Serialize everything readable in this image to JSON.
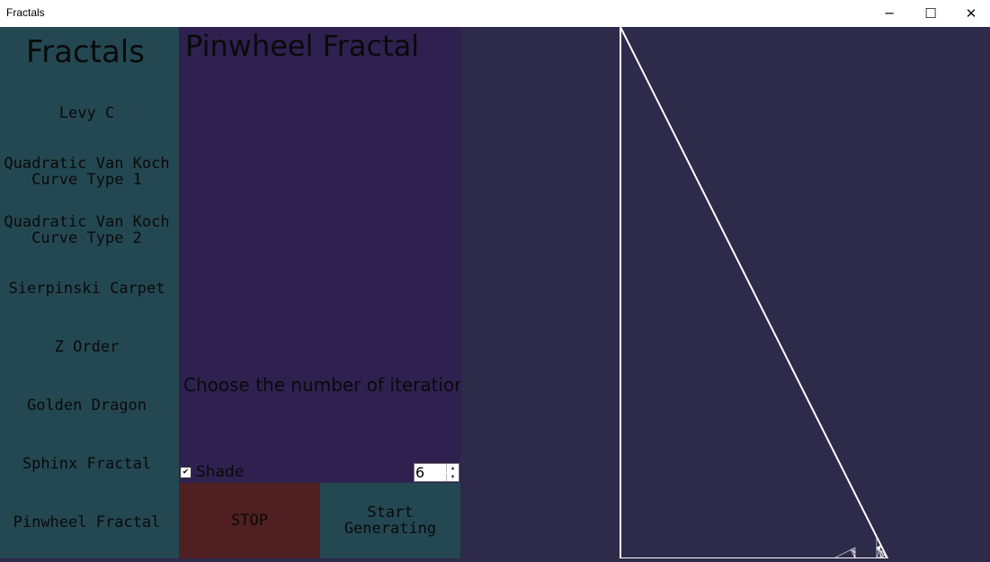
{
  "window": {
    "title": "Fractals",
    "minimize_glyph": "─",
    "maximize_glyph": "☐",
    "close_glyph": "✕"
  },
  "sidebar": {
    "title": "Fractals",
    "items": [
      {
        "label": "Levy C"
      },
      {
        "label": "Quadratic Van Koch\nCurve Type 1"
      },
      {
        "label": "Quadratic Van Koch\nCurve Type 2"
      },
      {
        "label": "Sierpinski Carpet"
      },
      {
        "label": "Z Order"
      },
      {
        "label": "Golden Dragon"
      },
      {
        "label": "Sphinx Fractal"
      },
      {
        "label": "Pinwheel Fractal"
      }
    ]
  },
  "panel": {
    "heading": "Pinwheel Fractal",
    "iteration_label": "Choose the number of iteration",
    "shade_label": "Shade",
    "shade_checked": true,
    "iterations_value": "6",
    "stop_label": "STOP",
    "start_label": "Start\nGenerating"
  },
  "colors": {
    "sidebar_bg": "#244852",
    "panel_bg": "#2e2150",
    "canvas_bg": "#2e2a4a",
    "stop_bg": "#4f1f22",
    "fractal_stroke": "#ffffff"
  }
}
